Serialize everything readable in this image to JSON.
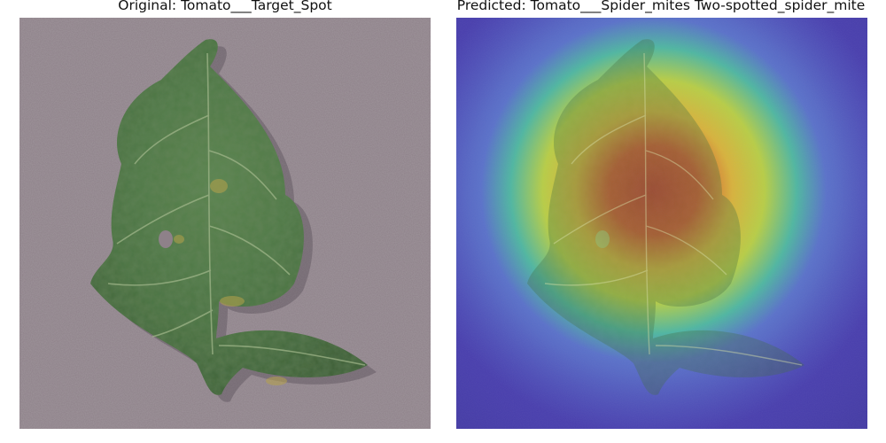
{
  "panels": {
    "original": {
      "title": "Original: Tomato___Target_Spot",
      "image": "tomato-leaf-photo"
    },
    "predicted": {
      "title": "Predicted: Tomato___Spider_mites Two-spotted_spider_mite",
      "image": "tomato-leaf-heatmap-overlay"
    }
  },
  "colors": {
    "background": "#8e8189",
    "leaf": "#4f7a45",
    "heatmap_hot": "#d9412b",
    "heatmap_cold": "#4a40b0"
  }
}
